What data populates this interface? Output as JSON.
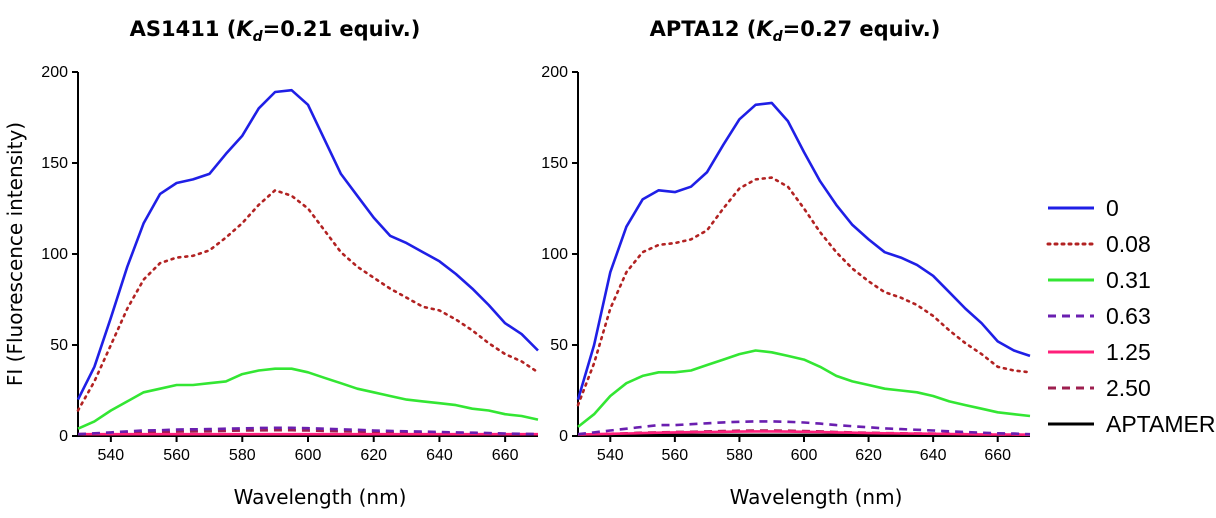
{
  "chart_data": [
    {
      "type": "line",
      "title_main": "AS1411 (",
      "title_kd": "K",
      "title_kd_sub": "d",
      "title_tail": "=0.21 equiv.)",
      "xlabel": "Wavelength (nm)",
      "ylabel": "FI (Fluorescence intensity)",
      "xlim": [
        530,
        670
      ],
      "ylim": [
        0,
        200
      ],
      "x_ticks": [
        540,
        560,
        580,
        600,
        620,
        640,
        660
      ],
      "y_ticks": [
        0,
        50,
        100,
        150,
        200
      ],
      "x": [
        530,
        535,
        540,
        545,
        550,
        555,
        560,
        565,
        570,
        575,
        580,
        585,
        590,
        595,
        600,
        605,
        610,
        615,
        620,
        625,
        630,
        635,
        640,
        645,
        650,
        655,
        660,
        665,
        670
      ],
      "series": [
        {
          "name": "0",
          "values": [
            20,
            38,
            65,
            93,
            117,
            133,
            139,
            141,
            144,
            155,
            165,
            180,
            189,
            190,
            182,
            163,
            144,
            132,
            120,
            110,
            106,
            101,
            96,
            89,
            81,
            72,
            62,
            56,
            47
          ]
        },
        {
          "name": "0.08",
          "values": [
            14,
            30,
            50,
            70,
            86,
            95,
            98,
            99,
            102,
            109,
            117,
            127,
            135,
            132,
            125,
            113,
            101,
            93,
            87,
            81,
            76,
            71,
            69,
            64,
            58,
            51,
            45,
            41,
            35
          ]
        },
        {
          "name": "0.31",
          "values": [
            4,
            8,
            14,
            19,
            24,
            26,
            28,
            28,
            29,
            30,
            34,
            36,
            37,
            37,
            35,
            32,
            29,
            26,
            24,
            22,
            20,
            19,
            18,
            17,
            15,
            14,
            12,
            11,
            9
          ]
        },
        {
          "name": "0.63",
          "values": [
            1,
            1.5,
            2,
            2.5,
            3,
            3.2,
            3.5,
            3.7,
            3.8,
            4,
            4.2,
            4.4,
            4.5,
            4.5,
            4.3,
            4,
            3.7,
            3.4,
            3,
            2.8,
            2.6,
            2.4,
            2.2,
            2,
            1.8,
            1.6,
            1.4,
            1.2,
            1
          ]
        },
        {
          "name": "1.25",
          "values": [
            1,
            1,
            1,
            1,
            1,
            1,
            1,
            1,
            1,
            1,
            1,
            1,
            1,
            1,
            1,
            1,
            1,
            1,
            1,
            1,
            1,
            1,
            1,
            1,
            1,
            1,
            1,
            1,
            1
          ]
        },
        {
          "name": "2.50",
          "values": [
            1,
            1.2,
            1.5,
            1.8,
            2,
            2.2,
            2.4,
            2.5,
            2.6,
            2.8,
            3,
            3.1,
            3.2,
            3.2,
            3,
            2.8,
            2.6,
            2.4,
            2.2,
            2,
            1.9,
            1.8,
            1.6,
            1.5,
            1.4,
            1.3,
            1.2,
            1.1,
            1
          ]
        },
        {
          "name": "APTAMER",
          "values": [
            0.5,
            0.5,
            0.5,
            0.5,
            0.5,
            0.5,
            0.5,
            0.5,
            0.5,
            0.5,
            0.5,
            0.5,
            0.5,
            0.5,
            0.5,
            0.5,
            0.5,
            0.5,
            0.5,
            0.5,
            0.5,
            0.5,
            0.5,
            0.5,
            0.5,
            0.5,
            0.5,
            0.5,
            0.5
          ]
        }
      ]
    },
    {
      "type": "line",
      "title_main": "APTA12 (",
      "title_kd": "K",
      "title_kd_sub": "d",
      "title_tail": "=0.27 equiv.)",
      "xlabel": "Wavelength (nm)",
      "ylabel": "",
      "xlim": [
        530,
        670
      ],
      "ylim": [
        0,
        200
      ],
      "x_ticks": [
        540,
        560,
        580,
        600,
        620,
        640,
        660
      ],
      "y_ticks": [
        0,
        50,
        100,
        150,
        200
      ],
      "x": [
        530,
        535,
        540,
        545,
        550,
        555,
        560,
        565,
        570,
        575,
        580,
        585,
        590,
        595,
        600,
        605,
        610,
        615,
        620,
        625,
        630,
        635,
        640,
        645,
        650,
        655,
        660,
        665,
        670
      ],
      "series": [
        {
          "name": "0",
          "values": [
            20,
            50,
            90,
            115,
            130,
            135,
            134,
            137,
            145,
            160,
            174,
            182,
            183,
            173,
            156,
            140,
            127,
            116,
            108,
            101,
            98,
            94,
            88,
            79,
            70,
            62,
            52,
            47,
            44
          ]
        },
        {
          "name": "0.08",
          "values": [
            17,
            40,
            70,
            90,
            101,
            105,
            106,
            108,
            113,
            125,
            136,
            141,
            142,
            137,
            125,
            112,
            101,
            92,
            85,
            79,
            76,
            72,
            66,
            58,
            51,
            45,
            38,
            36,
            35
          ]
        },
        {
          "name": "0.31",
          "values": [
            5,
            12,
            22,
            29,
            33,
            35,
            35,
            36,
            39,
            42,
            45,
            47,
            46,
            44,
            42,
            38,
            33,
            30,
            28,
            26,
            25,
            24,
            22,
            19,
            17,
            15,
            13,
            12,
            11
          ]
        },
        {
          "name": "0.63",
          "values": [
            1,
            2,
            3,
            4,
            5,
            6,
            6,
            6.5,
            7,
            7.5,
            7.8,
            8,
            8,
            7.8,
            7.4,
            6.8,
            6,
            5.4,
            4.8,
            4.2,
            3.8,
            3.4,
            3,
            2.6,
            2.2,
            1.8,
            1.5,
            1.3,
            1
          ]
        },
        {
          "name": "1.25",
          "values": [
            0.8,
            1,
            1.2,
            1.4,
            1.6,
            1.8,
            2,
            2.1,
            2.2,
            2.3,
            2.4,
            2.5,
            2.5,
            2.4,
            2.3,
            2.2,
            2,
            1.8,
            1.6,
            1.5,
            1.4,
            1.3,
            1.2,
            1.1,
            1,
            0.9,
            0.8,
            0.8,
            0.7
          ]
        },
        {
          "name": "2.50",
          "values": [
            0.8,
            1,
            1.2,
            1.5,
            1.8,
            2,
            2.2,
            2.3,
            2.5,
            2.7,
            2.9,
            3,
            3,
            2.9,
            2.7,
            2.5,
            2.2,
            2,
            1.8,
            1.6,
            1.5,
            1.4,
            1.3,
            1.2,
            1.1,
            1,
            0.9,
            0.8,
            0.8
          ]
        },
        {
          "name": "APTAMER",
          "values": [
            0.5,
            0.5,
            0.5,
            0.5,
            0.5,
            0.5,
            0.5,
            0.5,
            0.5,
            0.5,
            0.5,
            0.5,
            0.5,
            0.5,
            0.5,
            0.5,
            0.5,
            0.5,
            0.5,
            0.5,
            0.5,
            0.5,
            0.5,
            0.5,
            0.5,
            0.5,
            0.5,
            0.5,
            0.5
          ]
        }
      ]
    }
  ],
  "legend": {
    "placement": "right",
    "entries": [
      {
        "label": "0",
        "color": "#1f1fe6",
        "style": "solid"
      },
      {
        "label": "0.08",
        "color": "#b22222",
        "style": "dotted"
      },
      {
        "label": "0.31",
        "color": "#33e633",
        "style": "solid"
      },
      {
        "label": "0.63",
        "color": "#6a1fb0",
        "style": "dashed"
      },
      {
        "label": "1.25",
        "color": "#ff1f7a",
        "style": "solid"
      },
      {
        "label": "2.50",
        "color": "#9e1f4f",
        "style": "dashed"
      },
      {
        "label": "APTAMER",
        "color": "#000000",
        "style": "solid"
      }
    ]
  }
}
